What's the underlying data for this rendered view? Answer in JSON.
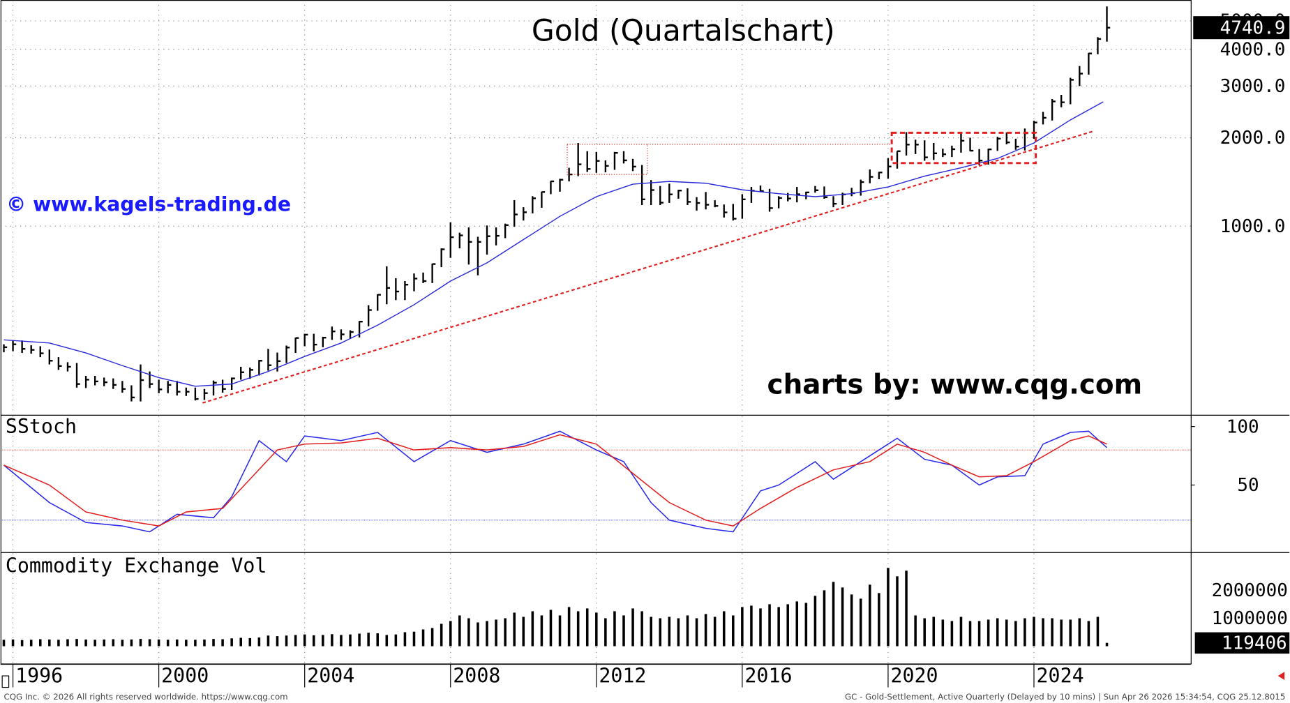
{
  "chart_data": [
    {
      "type": "hlc",
      "title": "Gold (Quartalschart)",
      "watermark": "© www.kagels-trading.de",
      "credit": "charts by: www.cqg.com",
      "log_scale": true,
      "color": "#000000",
      "xlim": [
        1995.66,
        2028.3
      ],
      "ylim": [
        230,
        5890
      ],
      "yticks": [
        {
          "value": 1000,
          "label": "1000.0"
        },
        {
          "value": 2000,
          "label": "2000.0"
        },
        {
          "value": 3000,
          "label": "3000.0"
        },
        {
          "value": 4000,
          "label": "4000.0"
        },
        {
          "value": 5000,
          "label": "5000.0"
        }
      ],
      "x": [
        1995.75,
        1996,
        1996.25,
        1996.5,
        1996.75,
        1997,
        1997.25,
        1997.5,
        1997.75,
        1998,
        1998.25,
        1998.5,
        1998.75,
        1999,
        1999.25,
        1999.5,
        1999.75,
        2000,
        2000.25,
        2000.5,
        2000.75,
        2001,
        2001.25,
        2001.5,
        2001.75,
        2002,
        2002.25,
        2002.5,
        2002.75,
        2003,
        2003.25,
        2003.5,
        2003.75,
        2004,
        2004.25,
        2004.5,
        2004.75,
        2005,
        2005.25,
        2005.5,
        2005.75,
        2006,
        2006.25,
        2006.5,
        2006.75,
        2007,
        2007.25,
        2007.5,
        2007.75,
        2008,
        2008.25,
        2008.5,
        2008.75,
        2009,
        2009.25,
        2009.5,
        2009.75,
        2010,
        2010.25,
        2010.5,
        2010.75,
        2011,
        2011.25,
        2011.5,
        2011.75,
        2012,
        2012.25,
        2012.5,
        2012.75,
        2013,
        2013.25,
        2013.5,
        2013.75,
        2014,
        2014.25,
        2014.5,
        2014.75,
        2015,
        2015.25,
        2015.5,
        2015.75,
        2016,
        2016.25,
        2016.5,
        2016.75,
        2017,
        2017.25,
        2017.5,
        2017.75,
        2018,
        2018.25,
        2018.5,
        2018.75,
        2019,
        2019.25,
        2019.5,
        2019.75,
        2020,
        2020.25,
        2020.5,
        2020.75,
        2021,
        2021.25,
        2021.5,
        2021.75,
        2022,
        2022.25,
        2022.5,
        2022.75,
        2023,
        2023.25,
        2023.5,
        2023.75,
        2024,
        2024.25,
        2024.5,
        2024.75,
        2025,
        2025.25,
        2025.5,
        2025.75,
        2026
      ],
      "high": [
        396,
        408,
        408,
        393,
        390,
        380,
        358,
        344,
        342,
        309,
        309,
        305,
        303,
        297,
        287,
        338,
        320,
        300,
        297,
        297,
        282,
        282,
        279,
        298,
        300,
        305,
        332,
        330,
        350,
        382,
        371,
        392,
        417,
        430,
        430,
        420,
        455,
        445,
        442,
        475,
        538,
        586,
        730,
        665,
        650,
        690,
        695,
        745,
        840,
        1030,
        950,
        990,
        920,
        1005,
        990,
        1020,
        1226,
        1160,
        1265,
        1310,
        1425,
        1450,
        1580,
        1920,
        1800,
        1790,
        1675,
        1790,
        1800,
        1695,
        1615,
        1435,
        1370,
        1395,
        1330,
        1345,
        1255,
        1307,
        1225,
        1185,
        1190,
        1285,
        1360,
        1375,
        1340,
        1265,
        1298,
        1360,
        1310,
        1370,
        1365,
        1265,
        1300,
        1350,
        1440,
        1560,
        1530,
        1705,
        1800,
        2090,
        1970,
        1960,
        1920,
        1835,
        1880,
        2080,
        2000,
        1830,
        1835,
        2015,
        2085,
        1985,
        2150,
        2285,
        2450,
        2710,
        2800,
        3200,
        3510,
        3890,
        4400,
        5600
      ],
      "low": [
        372,
        375,
        370,
        368,
        358,
        338,
        324,
        320,
        282,
        281,
        287,
        285,
        279,
        271,
        253,
        253,
        281,
        270,
        270,
        265,
        264,
        255,
        256,
        265,
        271,
        277,
        300,
        302,
        310,
        322,
        320,
        342,
        370,
        390,
        375,
        387,
        410,
        410,
        413,
        418,
        456,
        515,
        542,
        560,
        560,
        600,
        640,
        640,
        725,
        780,
        840,
        740,
        680,
        800,
        860,
        910,
        995,
        1045,
        1105,
        1155,
        1285,
        1310,
        1420,
        1480,
        1530,
        1520,
        1525,
        1555,
        1635,
        1540,
        1180,
        1180,
        1180,
        1200,
        1240,
        1180,
        1130,
        1140,
        1160,
        1070,
        1045,
        1060,
        1200,
        1305,
        1120,
        1150,
        1215,
        1205,
        1235,
        1300,
        1240,
        1160,
        1180,
        1265,
        1270,
        1400,
        1445,
        1450,
        1570,
        1740,
        1760,
        1670,
        1680,
        1720,
        1720,
        1780,
        1800,
        1615,
        1620,
        1805,
        1900,
        1820,
        1810,
        1985,
        2220,
        2290,
        2540,
        2600,
        3000,
        3280,
        3850,
        4250
      ],
      "close": [
        387,
        396,
        382,
        379,
        369,
        348,
        334,
        332,
        290,
        300,
        296,
        294,
        288,
        279,
        261,
        299,
        290,
        278,
        288,
        273,
        273,
        258,
        270,
        293,
        279,
        303,
        318,
        324,
        348,
        336,
        347,
        386,
        416,
        427,
        395,
        417,
        438,
        428,
        436,
        473,
        518,
        584,
        616,
        599,
        632,
        663,
        650,
        743,
        834,
        917,
        930,
        884,
        884,
        924,
        927,
        1008,
        1096,
        1115,
        1244,
        1307,
        1421,
        1439,
        1500,
        1624,
        1566,
        1668,
        1604,
        1776,
        1675,
        1595,
        1234,
        1327,
        1202,
        1283,
        1322,
        1210,
        1199,
        1183,
        1172,
        1114,
        1060,
        1234,
        1320,
        1317,
        1152,
        1247,
        1242,
        1284,
        1303,
        1325,
        1254,
        1192,
        1282,
        1295,
        1413,
        1472,
        1523,
        1596,
        1800,
        1895,
        1895,
        1715,
        1770,
        1757,
        1828,
        1954,
        1807,
        1672,
        1826,
        1986,
        1929,
        1866,
        2072,
        2254,
        2339,
        2659,
        2641,
        3150,
        3307,
        3873,
        4340,
        4740.9
      ],
      "series": [
        {
          "color": "#2828d8",
          "x": [
            1995.75,
            1997,
            1998,
            1999,
            2000,
            2001,
            2002,
            2003,
            2004,
            2005,
            2006,
            2007,
            2008,
            2009,
            2010,
            2011,
            2012,
            2013,
            2014,
            2015,
            2016,
            2017,
            2018,
            2019,
            2020,
            2021,
            2022,
            2023,
            2024,
            2025,
            2025.9
          ],
          "values": [
            410,
            400,
            370,
            335,
            305,
            285,
            290,
            320,
            360,
            400,
            460,
            540,
            650,
            750,
            900,
            1080,
            1260,
            1390,
            1420,
            1400,
            1330,
            1290,
            1260,
            1290,
            1360,
            1480,
            1580,
            1700,
            1920,
            2300,
            2650
          ]
        }
      ],
      "trendline": {
        "color": "#e02020",
        "x": [
          2001.2,
          2025.6
        ],
        "y": [
          250,
          2100
        ]
      },
      "zones": [
        {
          "style": "dotted",
          "x": [
            2011.2,
            2013.4
          ],
          "y": [
            1500,
            1900
          ]
        },
        {
          "style": "dashed",
          "x": [
            2020.1,
            2024.05
          ],
          "y": [
            1640,
            2080
          ]
        }
      ],
      "guide": {
        "x": [
          2013.4,
          2020.1
        ],
        "y": [
          1900,
          1900
        ]
      }
    },
    {
      "type": "line",
      "title": "SStoch",
      "xlim": [
        1995.66,
        2028.3
      ],
      "ylim": [
        -7,
        109
      ],
      "yticks": [
        50,
        100
      ],
      "reflines": [
        {
          "value": 80,
          "color": "#e03030"
        },
        {
          "value": 20,
          "color": "#3030e0"
        }
      ],
      "series": [
        {
          "color": "#2828e8",
          "x": [
            1995.75,
            1997,
            1998,
            1999,
            1999.75,
            2000.5,
            2001.5,
            2002,
            2002.75,
            2003.5,
            2004,
            2005,
            2006,
            2007,
            2008,
            2009,
            2010,
            2011,
            2012,
            2012.75,
            2013.5,
            2014,
            2015,
            2015.75,
            2016.5,
            2017,
            2018,
            2018.5,
            2019.5,
            2020.25,
            2021,
            2021.75,
            2022.5,
            2023,
            2023.75,
            2024.25,
            2025,
            2025.5,
            2026
          ],
          "values": [
            67,
            35,
            18,
            15,
            10,
            25,
            22,
            40,
            88,
            70,
            92,
            88,
            95,
            70,
            88,
            78,
            85,
            96,
            80,
            70,
            35,
            20,
            13,
            10,
            45,
            50,
            70,
            55,
            75,
            90,
            72,
            67,
            50,
            57,
            58,
            85,
            95,
            96,
            82
          ]
        },
        {
          "color": "#e02020",
          "x": [
            1995.75,
            1997,
            1998,
            1999,
            2000,
            2000.75,
            2001.75,
            2002.5,
            2003.25,
            2004,
            2005,
            2006,
            2007,
            2008,
            2009,
            2010,
            2011,
            2012,
            2013,
            2014,
            2015,
            2015.75,
            2016.5,
            2017.5,
            2018.5,
            2019.5,
            2020.25,
            2021,
            2021.75,
            2022.5,
            2023.25,
            2024,
            2025,
            2025.5,
            2026
          ],
          "values": [
            67,
            50,
            27,
            20,
            15,
            27,
            30,
            55,
            80,
            85,
            86,
            90,
            80,
            82,
            80,
            83,
            93,
            85,
            60,
            35,
            20,
            15,
            30,
            48,
            63,
            70,
            85,
            78,
            67,
            57,
            58,
            70,
            88,
            92,
            85
          ]
        }
      ]
    },
    {
      "type": "bar",
      "title": "Commodity Exchange Vol",
      "color": "#000000",
      "xlim": [
        1995.66,
        2028.3
      ],
      "ylim": [
        -620000,
        3320000
      ],
      "yticks": [
        1000000,
        2000000
      ],
      "xticks": [
        1996,
        2000,
        2004,
        2008,
        2012,
        2016,
        2020,
        2024
      ],
      "x": [
        1995.75,
        1996,
        1996.25,
        1996.5,
        1996.75,
        1997,
        1997.25,
        1997.5,
        1997.75,
        1998,
        1998.25,
        1998.5,
        1998.75,
        1999,
        1999.25,
        1999.5,
        1999.75,
        2000,
        2000.25,
        2000.5,
        2000.75,
        2001,
        2001.25,
        2001.5,
        2001.75,
        2002,
        2002.25,
        2002.5,
        2002.75,
        2003,
        2003.25,
        2003.5,
        2003.75,
        2004,
        2004.25,
        2004.5,
        2004.75,
        2005,
        2005.25,
        2005.5,
        2005.75,
        2006,
        2006.25,
        2006.5,
        2006.75,
        2007,
        2007.25,
        2007.5,
        2007.75,
        2008,
        2008.25,
        2008.5,
        2008.75,
        2009,
        2009.25,
        2009.5,
        2009.75,
        2010,
        2010.25,
        2010.5,
        2010.75,
        2011,
        2011.25,
        2011.5,
        2011.75,
        2012,
        2012.25,
        2012.5,
        2012.75,
        2013,
        2013.25,
        2013.5,
        2013.75,
        2014,
        2014.25,
        2014.5,
        2014.75,
        2015,
        2015.25,
        2015.5,
        2015.75,
        2016,
        2016.25,
        2016.5,
        2016.75,
        2017,
        2017.25,
        2017.5,
        2017.75,
        2018,
        2018.25,
        2018.5,
        2018.75,
        2019,
        2019.25,
        2019.5,
        2019.75,
        2020,
        2020.25,
        2020.5,
        2020.75,
        2021,
        2021.25,
        2021.5,
        2021.75,
        2022,
        2022.25,
        2022.5,
        2022.75,
        2023,
        2023.25,
        2023.5,
        2023.75,
        2024,
        2024.25,
        2024.5,
        2024.75,
        2025,
        2025.25,
        2025.5,
        2025.75,
        2026
      ],
      "values": [
        230000,
        240000,
        220000,
        230000,
        250000,
        240000,
        230000,
        250000,
        260000,
        240000,
        230000,
        240000,
        250000,
        230000,
        240000,
        260000,
        250000,
        240000,
        230000,
        240000,
        230000,
        230000,
        240000,
        260000,
        250000,
        280000,
        300000,
        290000,
        310000,
        380000,
        360000,
        380000,
        400000,
        420000,
        390000,
        400000,
        430000,
        400000,
        420000,
        450000,
        480000,
        460000,
        400000,
        420000,
        500000,
        520000,
        600000,
        650000,
        800000,
        900000,
        1100000,
        1000000,
        850000,
        900000,
        950000,
        1000000,
        1200000,
        1050000,
        1250000,
        1100000,
        1300000,
        1100000,
        1400000,
        1250000,
        1350000,
        1200000,
        1000000,
        1250000,
        1100000,
        1350000,
        1250000,
        1050000,
        1000000,
        1050000,
        1000000,
        1100000,
        1000000,
        1150000,
        1050000,
        1250000,
        1100000,
        1400000,
        1450000,
        1350000,
        1500000,
        1400000,
        1500000,
        1600000,
        1550000,
        1800000,
        2000000,
        2300000,
        2100000,
        1850000,
        1700000,
        2200000,
        1900000,
        2800000,
        2500000,
        2700000,
        1100000,
        1000000,
        1050000,
        950000,
        900000,
        1050000,
        900000,
        900000,
        950000,
        1000000,
        950000,
        900000,
        1000000,
        1050000,
        1000000,
        1000000,
        950000,
        950000,
        1000000,
        900000,
        1050000,
        119406
      ]
    }
  ],
  "footer": {
    "left": "CQG Inc. © 2026 All rights reserved worldwide. https://www.cqg.com",
    "right": "GC - Gold-Settlement, Active Quarterly (Delayed by 10 mins) | Sun Apr 26 2026 15:34:54, CQG 25.12.8015"
  }
}
